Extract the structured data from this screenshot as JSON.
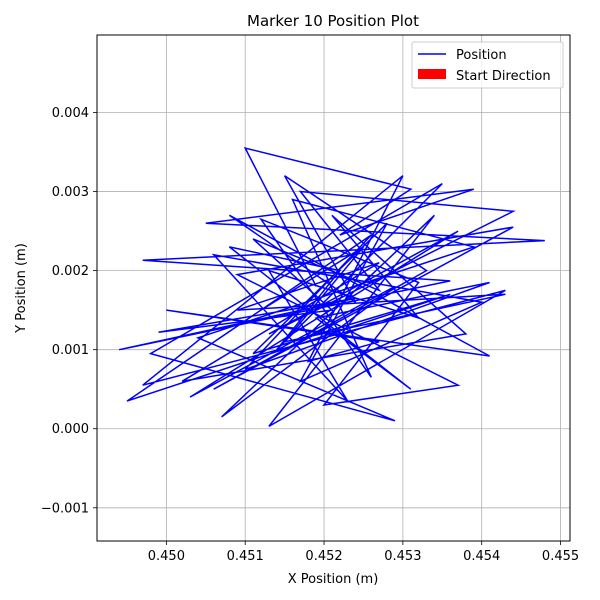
{
  "chart_data": {
    "type": "line",
    "title": "Marker 10 Position Plot",
    "xlabel": "X Position (m)",
    "ylabel": "Y Position (m)",
    "xlim": [
      0.44912,
      0.45512
    ],
    "ylim": [
      -0.00142,
      0.00498
    ],
    "xticks": [
      {
        "value": 0.45,
        "label": "0.450"
      },
      {
        "value": 0.451,
        "label": "0.451"
      },
      {
        "value": 0.452,
        "label": "0.452"
      },
      {
        "value": 0.453,
        "label": "0.453"
      },
      {
        "value": 0.454,
        "label": "0.454"
      },
      {
        "value": 0.455,
        "label": "0.455"
      }
    ],
    "yticks": [
      {
        "value": -0.001,
        "label": "−0.001"
      },
      {
        "value": 0.0,
        "label": "0.000"
      },
      {
        "value": 0.001,
        "label": "0.001"
      },
      {
        "value": 0.002,
        "label": "0.002"
      },
      {
        "value": 0.003,
        "label": "0.003"
      },
      {
        "value": 0.004,
        "label": "0.004"
      }
    ],
    "grid": true,
    "legend": {
      "placement": "top-right",
      "entries": [
        {
          "label": "Position",
          "kind": "line",
          "color": "#0000ff"
        },
        {
          "label": "Start Direction",
          "kind": "patch",
          "color": "#ff0000"
        }
      ]
    },
    "series": [
      {
        "name": "Position",
        "color": "#0000ff",
        "x": [
          0.4519,
          0.451,
          0.4531,
          0.4522,
          0.4539,
          0.4505,
          0.4548,
          0.4497,
          0.4536,
          0.4494,
          0.4524,
          0.4499,
          0.4521,
          0.4511,
          0.4527,
          0.4517,
          0.4544,
          0.4513,
          0.4537,
          0.4503,
          0.4529,
          0.4507,
          0.4534,
          0.4513,
          0.4543,
          0.4497,
          0.453,
          0.4518,
          0.4527,
          0.45,
          0.4541,
          0.4508,
          0.4524,
          0.4515,
          0.4533,
          0.4506,
          0.4544,
          0.4509,
          0.4537,
          0.452,
          0.4532,
          0.4512,
          0.4526,
          0.4516,
          0.4539,
          0.4504,
          0.4529,
          0.4498,
          0.4535,
          0.4514,
          0.4522,
          0.4508,
          0.4531,
          0.4519,
          0.4541,
          0.451,
          0.4526,
          0.4495,
          0.4536,
          0.4511,
          0.4528,
          0.4517,
          0.454,
          0.4506,
          0.4523,
          0.4513,
          0.4532,
          0.4521,
          0.4538,
          0.4502,
          0.4527,
          0.4509,
          0.4543,
          0.4515,
          0.4525,
          0.4512
        ],
        "y": [
          0.0018,
          0.00355,
          0.00303,
          0.00245,
          0.00303,
          0.0026,
          0.00238,
          0.00213,
          0.00187,
          0.001,
          0.00165,
          0.00122,
          0.0015,
          0.0024,
          0.00175,
          0.003,
          0.00275,
          0.0012,
          0.0025,
          0.0004,
          0.0018,
          0.00015,
          0.0027,
          3e-05,
          0.00175,
          0.00055,
          0.0032,
          0.00085,
          0.0011,
          0.0015,
          0.00092,
          0.0027,
          0.0016,
          0.0032,
          0.002,
          0.0005,
          0.00255,
          0.00195,
          0.00055,
          0.0003,
          0.00185,
          0.00265,
          0.00065,
          0.0029,
          0.0023,
          0.00115,
          0.0001,
          0.00095,
          0.0031,
          0.001,
          0.002,
          0.0023,
          0.0005,
          0.0014,
          0.00185,
          0.00075,
          0.00245,
          0.00035,
          0.0017,
          0.00095,
          0.0026,
          0.0006,
          0.0016,
          0.0022,
          0.00035,
          0.002,
          0.0014,
          0.0027,
          0.0012,
          0.0006,
          0.0021,
          0.0015,
          0.0017,
          0.0011,
          0.0023,
          0.0015
        ]
      }
    ]
  }
}
